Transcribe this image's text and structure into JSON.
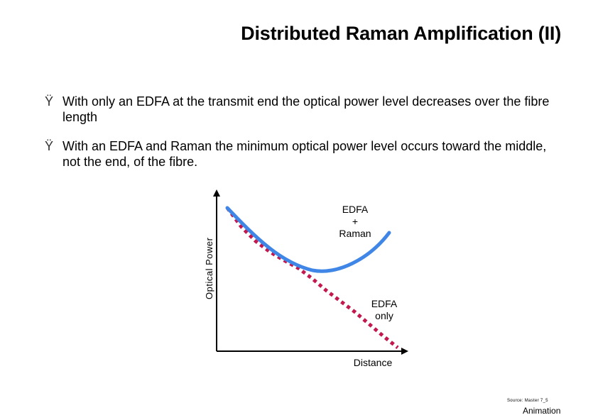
{
  "title": "Distributed Raman Amplification (II)",
  "bullets": [
    {
      "marker": "Ÿ",
      "text": "With only an EDFA at the transmit end the optical power level decreases over the fibre length"
    },
    {
      "marker": "Ÿ",
      "text": "With an EDFA and Raman the minimum optical power level occurs toward the middle, not the end, of the fibre."
    }
  ],
  "diagram": {
    "y_axis_label": "Optical Power",
    "x_axis_label": "Distance",
    "curve_raman_label": "EDFA\n+\nRaman",
    "curve_edfa_label": "EDFA\nonly",
    "colors": {
      "raman_curve": "#3f86e6",
      "edfa_curve": "#c2184e",
      "axis": "#000000"
    }
  },
  "footer": {
    "source": "Source: Master 7_5",
    "animation": "Animation"
  }
}
